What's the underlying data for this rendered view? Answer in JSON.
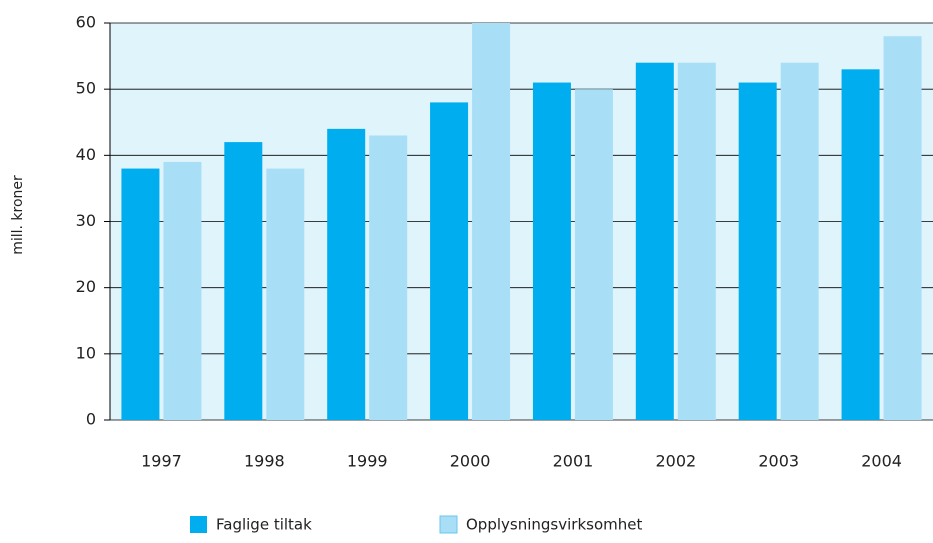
{
  "chart_data": {
    "type": "bar",
    "y_label": "mill. kroner",
    "categories": [
      "1997",
      "1998",
      "1999",
      "2000",
      "2001",
      "2002",
      "2003",
      "2004"
    ],
    "series": [
      {
        "name": "Faglige tiltak",
        "color": "#00aeef",
        "values": [
          38,
          42,
          44,
          48,
          51,
          54,
          51,
          53
        ]
      },
      {
        "name": "Opplysningsvirksomhet",
        "color": "#a8dff7",
        "values": [
          39,
          38,
          43,
          60,
          50,
          54,
          54,
          58
        ]
      }
    ],
    "ylim": [
      0,
      60
    ],
    "yticks": [
      0,
      10,
      20,
      30,
      40,
      50,
      60
    ],
    "grid": true,
    "legend": "bottom"
  }
}
